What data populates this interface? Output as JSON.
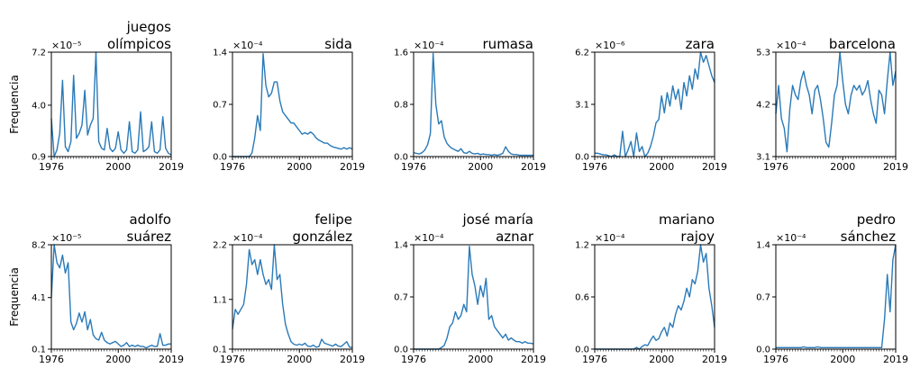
{
  "figure": {
    "ylabel": "Frequencia",
    "line_color": "#2a7ab8"
  },
  "chart_data": [
    {
      "type": "line",
      "title": "juegos\nolímpicos",
      "exponent": "×10⁻⁵",
      "xticks": [
        "1976",
        "2000",
        "2019"
      ],
      "yticks": [
        "0.9",
        "4.0",
        "7.2"
      ],
      "xlim": [
        1976,
        2019
      ],
      "ylim": [
        0.9,
        7.2
      ],
      "x": [
        1976,
        1977,
        1978,
        1979,
        1980,
        1981,
        1982,
        1983,
        1984,
        1985,
        1986,
        1987,
        1988,
        1989,
        1990,
        1991,
        1992,
        1993,
        1994,
        1995,
        1996,
        1997,
        1998,
        1999,
        2000,
        2001,
        2002,
        2003,
        2004,
        2005,
        2006,
        2007,
        2008,
        2009,
        2010,
        2011,
        2012,
        2013,
        2014,
        2015,
        2016,
        2017,
        2018,
        2019
      ],
      "y": [
        3.2,
        0.9,
        1.3,
        2.3,
        5.5,
        1.5,
        1.2,
        1.8,
        5.8,
        2.0,
        2.3,
        2.8,
        4.9,
        2.2,
        2.8,
        3.2,
        7.2,
        1.8,
        1.4,
        1.3,
        2.6,
        1.4,
        1.2,
        1.4,
        2.4,
        1.3,
        1.1,
        1.3,
        3.0,
        1.2,
        1.1,
        1.3,
        3.6,
        1.2,
        1.3,
        1.5,
        3.0,
        1.2,
        1.1,
        1.3,
        3.3,
        1.4,
        1.1,
        1.0
      ]
    },
    {
      "type": "line",
      "title": "sida",
      "exponent": "×10⁻⁴",
      "xticks": [
        "1976",
        "2000",
        "2019"
      ],
      "yticks": [
        "0.0",
        "0.7",
        "1.4"
      ],
      "xlim": [
        1976,
        2019
      ],
      "ylim": [
        0.0,
        1.4
      ],
      "x": [
        1976,
        1977,
        1978,
        1979,
        1980,
        1981,
        1982,
        1983,
        1984,
        1985,
        1986,
        1987,
        1988,
        1989,
        1990,
        1991,
        1992,
        1993,
        1994,
        1995,
        1996,
        1997,
        1998,
        1999,
        2000,
        2001,
        2002,
        2003,
        2004,
        2005,
        2006,
        2007,
        2008,
        2009,
        2010,
        2011,
        2012,
        2013,
        2014,
        2015,
        2016,
        2017,
        2018,
        2019
      ],
      "y": [
        0.0,
        0.0,
        0.0,
        0.0,
        0.0,
        0.0,
        0.0,
        0.05,
        0.25,
        0.55,
        0.35,
        1.38,
        0.95,
        0.8,
        0.85,
        1.0,
        1.0,
        0.75,
        0.6,
        0.55,
        0.5,
        0.45,
        0.45,
        0.4,
        0.35,
        0.3,
        0.32,
        0.3,
        0.33,
        0.3,
        0.25,
        0.22,
        0.2,
        0.18,
        0.18,
        0.15,
        0.13,
        0.12,
        0.11,
        0.1,
        0.12,
        0.1,
        0.12,
        0.1
      ]
    },
    {
      "type": "line",
      "title": "rumasa",
      "exponent": "×10⁻⁴",
      "xticks": [
        "1976",
        "2000",
        "2019"
      ],
      "yticks": [
        "0.0",
        "0.8",
        "1.6"
      ],
      "xlim": [
        1976,
        2019
      ],
      "ylim": [
        0.0,
        1.6
      ],
      "x": [
        1976,
        1977,
        1978,
        1979,
        1980,
        1981,
        1982,
        1983,
        1984,
        1985,
        1986,
        1987,
        1988,
        1989,
        1990,
        1991,
        1992,
        1993,
        1994,
        1995,
        1996,
        1997,
        1998,
        1999,
        2000,
        2001,
        2002,
        2003,
        2004,
        2005,
        2006,
        2007,
        2008,
        2009,
        2010,
        2011,
        2012,
        2013,
        2014,
        2015,
        2016,
        2017,
        2018,
        2019
      ],
      "y": [
        0.06,
        0.05,
        0.04,
        0.06,
        0.1,
        0.18,
        0.35,
        1.58,
        0.8,
        0.5,
        0.55,
        0.3,
        0.2,
        0.15,
        0.12,
        0.1,
        0.08,
        0.12,
        0.06,
        0.05,
        0.08,
        0.05,
        0.04,
        0.05,
        0.03,
        0.04,
        0.03,
        0.03,
        0.02,
        0.03,
        0.02,
        0.03,
        0.05,
        0.15,
        0.08,
        0.04,
        0.03,
        0.03,
        0.02,
        0.02,
        0.02,
        0.02,
        0.02,
        0.02
      ]
    },
    {
      "type": "line",
      "title": "zara",
      "exponent": "×10⁻⁶",
      "xticks": [
        "1976",
        "2000",
        "2019"
      ],
      "yticks": [
        "0.0",
        "3.1",
        "6.2"
      ],
      "xlim": [
        1976,
        2019
      ],
      "ylim": [
        0.0,
        6.2
      ],
      "x": [
        1976,
        1977,
        1978,
        1979,
        1980,
        1981,
        1982,
        1983,
        1984,
        1985,
        1986,
        1987,
        1988,
        1989,
        1990,
        1991,
        1992,
        1993,
        1994,
        1995,
        1996,
        1997,
        1998,
        1999,
        2000,
        2001,
        2002,
        2003,
        2004,
        2005,
        2006,
        2007,
        2008,
        2009,
        2010,
        2011,
        2012,
        2013,
        2014,
        2015,
        2016,
        2017,
        2018,
        2019
      ],
      "y": [
        0.2,
        0.2,
        0.15,
        0.1,
        0.1,
        0.05,
        0.0,
        0.1,
        0.0,
        0.0,
        1.5,
        0.0,
        0.4,
        0.9,
        0.0,
        1.4,
        0.3,
        0.6,
        0.0,
        0.2,
        0.6,
        1.2,
        2.0,
        2.2,
        3.6,
        2.6,
        3.8,
        3.0,
        4.2,
        3.4,
        4.0,
        2.8,
        4.4,
        3.6,
        4.8,
        4.0,
        5.2,
        4.6,
        6.2,
        5.6,
        6.0,
        5.4,
        4.8,
        4.4
      ]
    },
    {
      "type": "line",
      "title": "barcelona",
      "exponent": "×10⁻⁴",
      "xticks": [
        "1976",
        "2000",
        "2019"
      ],
      "yticks": [
        "3.1",
        "4.2",
        "5.3"
      ],
      "xlim": [
        1976,
        2019
      ],
      "ylim": [
        3.1,
        5.3
      ],
      "x": [
        1976,
        1977,
        1978,
        1979,
        1980,
        1981,
        1982,
        1983,
        1984,
        1985,
        1986,
        1987,
        1988,
        1989,
        1990,
        1991,
        1992,
        1993,
        1994,
        1995,
        1996,
        1997,
        1998,
        1999,
        2000,
        2001,
        2002,
        2003,
        2004,
        2005,
        2006,
        2007,
        2008,
        2009,
        2010,
        2011,
        2012,
        2013,
        2014,
        2015,
        2016,
        2017,
        2018,
        2019
      ],
      "y": [
        4.0,
        4.6,
        3.9,
        3.7,
        3.2,
        4.1,
        4.6,
        4.4,
        4.3,
        4.7,
        4.9,
        4.6,
        4.4,
        4.0,
        4.5,
        4.6,
        4.3,
        3.9,
        3.4,
        3.3,
        3.8,
        4.4,
        4.6,
        5.3,
        4.7,
        4.2,
        4.0,
        4.4,
        4.6,
        4.5,
        4.6,
        4.4,
        4.5,
        4.7,
        4.3,
        4.0,
        3.8,
        4.5,
        4.4,
        4.0,
        4.7,
        5.3,
        4.6,
        4.9
      ]
    },
    {
      "type": "line",
      "title": "adolfo\nsuárez",
      "exponent": "×10⁻⁵",
      "xticks": [
        "1976",
        "2000",
        "2019"
      ],
      "yticks": [
        "0.1",
        "4.1",
        "8.2"
      ],
      "xlim": [
        1976,
        2019
      ],
      "ylim": [
        0.1,
        8.2
      ],
      "x": [
        1976,
        1977,
        1978,
        1979,
        1980,
        1981,
        1982,
        1983,
        1984,
        1985,
        1986,
        1987,
        1988,
        1989,
        1990,
        1991,
        1992,
        1993,
        1994,
        1995,
        1996,
        1997,
        1998,
        1999,
        2000,
        2001,
        2002,
        2003,
        2004,
        2005,
        2006,
        2007,
        2008,
        2009,
        2010,
        2011,
        2012,
        2013,
        2014,
        2015,
        2016,
        2017,
        2018,
        2019
      ],
      "y": [
        4.1,
        8.2,
        6.8,
        6.4,
        7.4,
        6.0,
        6.8,
        2.2,
        1.6,
        2.1,
        2.9,
        2.2,
        3.0,
        1.6,
        2.4,
        1.2,
        0.9,
        0.8,
        1.4,
        0.8,
        0.6,
        0.5,
        0.6,
        0.7,
        0.5,
        0.3,
        0.4,
        0.6,
        0.3,
        0.4,
        0.3,
        0.4,
        0.3,
        0.3,
        0.2,
        0.3,
        0.4,
        0.3,
        0.3,
        1.3,
        0.4,
        0.4,
        0.5,
        0.5
      ]
    },
    {
      "type": "line",
      "title": "felipe\ngonzález",
      "exponent": "×10⁻⁴",
      "xticks": [
        "1976",
        "2000",
        "2019"
      ],
      "yticks": [
        "0.1",
        "1.1",
        "2.2"
      ],
      "xlim": [
        1976,
        2019
      ],
      "ylim": [
        0.1,
        2.2
      ],
      "x": [
        1976,
        1977,
        1978,
        1979,
        1980,
        1981,
        1982,
        1983,
        1984,
        1985,
        1986,
        1987,
        1988,
        1989,
        1990,
        1991,
        1992,
        1993,
        1994,
        1995,
        1996,
        1997,
        1998,
        1999,
        2000,
        2001,
        2002,
        2003,
        2004,
        2005,
        2006,
        2007,
        2008,
        2009,
        2010,
        2011,
        2012,
        2013,
        2014,
        2015,
        2016,
        2017,
        2018,
        2019
      ],
      "y": [
        0.5,
        0.9,
        0.8,
        0.9,
        1.0,
        1.4,
        2.1,
        1.8,
        1.9,
        1.6,
        1.9,
        1.6,
        1.4,
        1.5,
        1.3,
        2.2,
        1.5,
        1.6,
        1.0,
        0.6,
        0.4,
        0.25,
        0.2,
        0.18,
        0.2,
        0.18,
        0.22,
        0.16,
        0.15,
        0.18,
        0.14,
        0.15,
        0.3,
        0.22,
        0.2,
        0.18,
        0.16,
        0.2,
        0.16,
        0.15,
        0.2,
        0.25,
        0.14,
        0.13
      ]
    },
    {
      "type": "line",
      "title": "josé maría\naznar",
      "exponent": "×10⁻⁴",
      "xticks": [
        "1976",
        "2000",
        "2019"
      ],
      "yticks": [
        "0.0",
        "0.7",
        "1.4"
      ],
      "xlim": [
        1976,
        2019
      ],
      "ylim": [
        0.0,
        1.4
      ],
      "x": [
        1976,
        1977,
        1978,
        1979,
        1980,
        1981,
        1982,
        1983,
        1984,
        1985,
        1986,
        1987,
        1988,
        1989,
        1990,
        1991,
        1992,
        1993,
        1994,
        1995,
        1996,
        1997,
        1998,
        1999,
        2000,
        2001,
        2002,
        2003,
        2004,
        2005,
        2006,
        2007,
        2008,
        2009,
        2010,
        2011,
        2012,
        2013,
        2014,
        2015,
        2016,
        2017,
        2018,
        2019
      ],
      "y": [
        0.0,
        0.0,
        0.0,
        0.0,
        0.0,
        0.0,
        0.0,
        0.0,
        0.0,
        0.0,
        0.02,
        0.05,
        0.15,
        0.3,
        0.35,
        0.5,
        0.4,
        0.45,
        0.6,
        0.5,
        1.38,
        1.0,
        0.85,
        0.6,
        0.85,
        0.7,
        0.95,
        0.4,
        0.45,
        0.3,
        0.25,
        0.2,
        0.15,
        0.2,
        0.12,
        0.15,
        0.12,
        0.1,
        0.1,
        0.08,
        0.1,
        0.08,
        0.08,
        0.07
      ]
    },
    {
      "type": "line",
      "title": "mariano\nrajoy",
      "exponent": "×10⁻⁴",
      "xticks": [
        "1976",
        "2000",
        "2019"
      ],
      "yticks": [
        "0.0",
        "0.6",
        "1.2"
      ],
      "xlim": [
        1976,
        2019
      ],
      "ylim": [
        0.0,
        1.2
      ],
      "x": [
        1976,
        1977,
        1978,
        1979,
        1980,
        1981,
        1982,
        1983,
        1984,
        1985,
        1986,
        1987,
        1988,
        1989,
        1990,
        1991,
        1992,
        1993,
        1994,
        1995,
        1996,
        1997,
        1998,
        1999,
        2000,
        2001,
        2002,
        2003,
        2004,
        2005,
        2006,
        2007,
        2008,
        2009,
        2010,
        2011,
        2012,
        2013,
        2014,
        2015,
        2016,
        2017,
        2018,
        2019
      ],
      "y": [
        0.0,
        0.0,
        0.0,
        0.0,
        0.0,
        0.0,
        0.0,
        0.0,
        0.0,
        0.0,
        0.0,
        0.0,
        0.0,
        0.0,
        0.0,
        0.02,
        0.0,
        0.03,
        0.05,
        0.04,
        0.1,
        0.15,
        0.1,
        0.12,
        0.2,
        0.25,
        0.15,
        0.3,
        0.25,
        0.4,
        0.5,
        0.45,
        0.55,
        0.7,
        0.6,
        0.8,
        0.75,
        0.9,
        1.2,
        1.0,
        1.1,
        0.7,
        0.5,
        0.25
      ]
    },
    {
      "type": "line",
      "title": "pedro\nsánchez",
      "exponent": "×10⁻⁴",
      "xticks": [
        "1976",
        "2000",
        "2019"
      ],
      "yticks": [
        "0.0",
        "0.7",
        "1.4"
      ],
      "xlim": [
        1976,
        2019
      ],
      "ylim": [
        0.0,
        1.4
      ],
      "x": [
        1976,
        1977,
        1978,
        1979,
        1980,
        1981,
        1982,
        1983,
        1984,
        1985,
        1986,
        1987,
        1988,
        1989,
        1990,
        1991,
        1992,
        1993,
        1994,
        1995,
        1996,
        1997,
        1998,
        1999,
        2000,
        2001,
        2002,
        2003,
        2004,
        2005,
        2006,
        2007,
        2008,
        2009,
        2010,
        2011,
        2012,
        2013,
        2014,
        2015,
        2016,
        2017,
        2018,
        2019
      ],
      "y": [
        0.02,
        0.02,
        0.02,
        0.02,
        0.02,
        0.02,
        0.02,
        0.02,
        0.02,
        0.02,
        0.03,
        0.02,
        0.02,
        0.02,
        0.02,
        0.03,
        0.02,
        0.02,
        0.02,
        0.02,
        0.02,
        0.02,
        0.02,
        0.02,
        0.02,
        0.02,
        0.02,
        0.02,
        0.02,
        0.02,
        0.02,
        0.02,
        0.02,
        0.02,
        0.02,
        0.02,
        0.02,
        0.02,
        0.02,
        0.4,
        1.0,
        0.5,
        1.2,
        1.4
      ]
    }
  ]
}
